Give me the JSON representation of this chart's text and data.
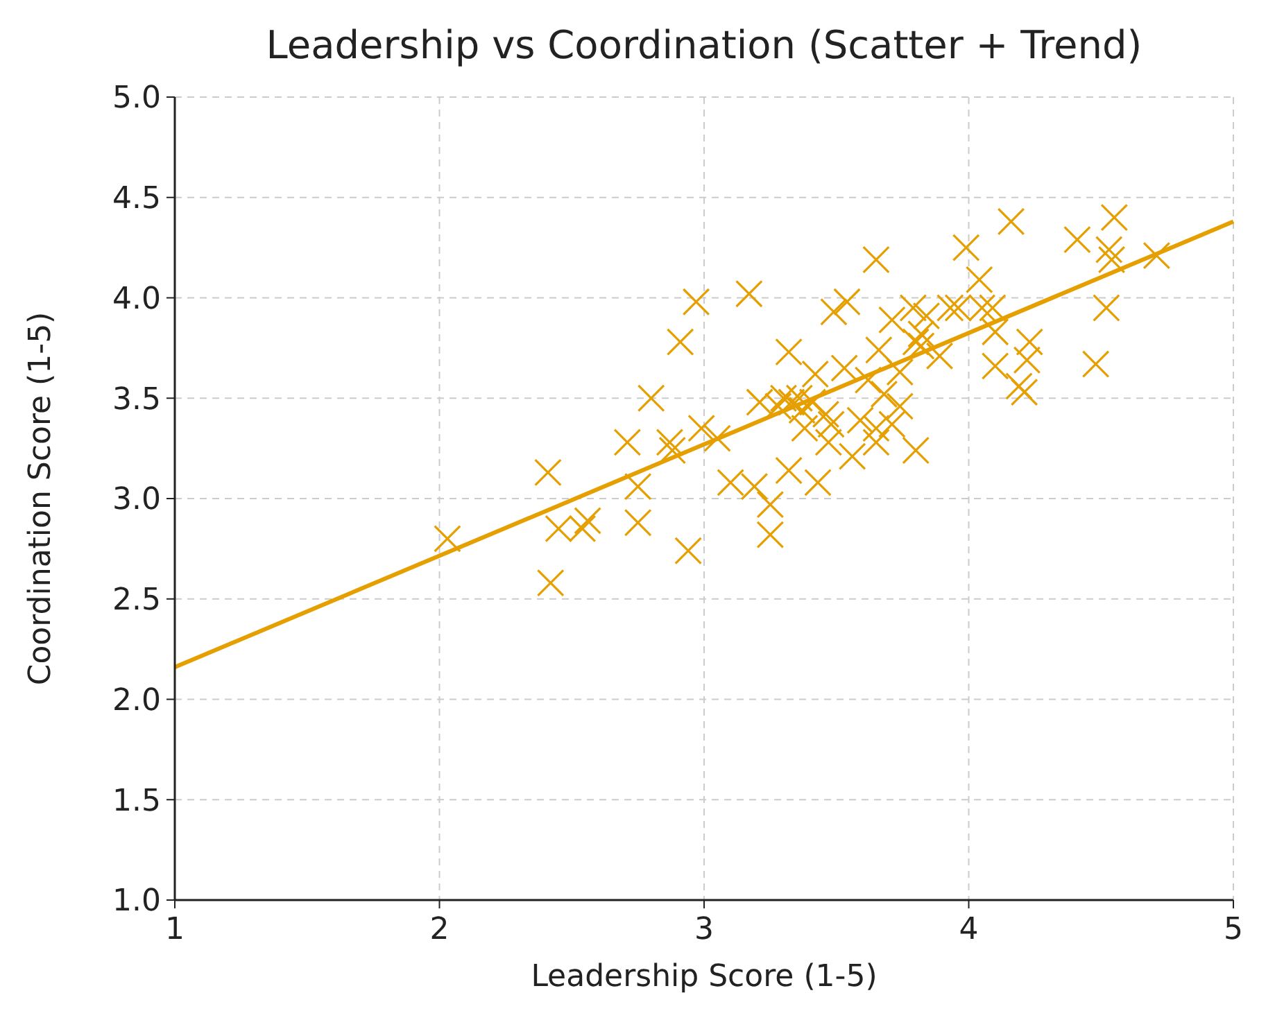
{
  "chart_data": {
    "type": "scatter",
    "title": "Leadership vs Coordination (Scatter + Trend)",
    "xlabel": "Leadership Score (1-5)",
    "ylabel": "Coordination Score (1-5)",
    "xlim": [
      1,
      5
    ],
    "xticks": [
      1,
      2,
      3,
      4,
      5
    ],
    "ylim": [
      1,
      5
    ],
    "yticks": [
      {
        "value": 1,
        "label": "1.0"
      },
      {
        "value": 1.5,
        "label": "1.5"
      },
      {
        "value": 2,
        "label": "2.0"
      },
      {
        "value": 2.5,
        "label": "2.5"
      },
      {
        "value": 3,
        "label": "3.0"
      },
      {
        "value": 3.5,
        "label": "3.5"
      },
      {
        "value": 4,
        "label": "4.0"
      },
      {
        "value": 4.5,
        "label": "4.5"
      },
      {
        "value": 5,
        "label": "5.0"
      }
    ],
    "grid": true,
    "series": [
      {
        "marker": "cross",
        "color": "#e69f00",
        "x": [
          2.03,
          2.41,
          2.42,
          2.45,
          2.54,
          2.56,
          2.71,
          2.75,
          2.75,
          2.8,
          2.87,
          2.88,
          2.91,
          2.94,
          2.97,
          2.99,
          3.05,
          3.1,
          3.17,
          3.19,
          3.21,
          3.25,
          3.25,
          3.28,
          3.3,
          3.32,
          3.32,
          3.33,
          3.36,
          3.37,
          3.38,
          3.41,
          3.43,
          3.42,
          3.46,
          3.47,
          3.48,
          3.49,
          3.54,
          3.53,
          3.56,
          3.59,
          3.62,
          3.65,
          3.65,
          3.65,
          3.66,
          3.68,
          3.71,
          3.71,
          3.74,
          3.74,
          3.79,
          3.8,
          3.8,
          3.82,
          3.82,
          3.84,
          3.89,
          3.93,
          3.96,
          3.99,
          4.04,
          4.05,
          4.09,
          4.1,
          4.1,
          4.16,
          4.19,
          4.21,
          4.22,
          4.23,
          4.41,
          4.48,
          4.52,
          4.53,
          4.54,
          4.55,
          4.71
        ],
        "values": [
          2.8,
          3.13,
          2.58,
          2.85,
          2.85,
          2.89,
          3.28,
          3.06,
          2.88,
          3.5,
          3.28,
          3.24,
          3.78,
          2.74,
          3.98,
          3.35,
          3.3,
          3.08,
          4.02,
          3.06,
          3.48,
          2.82,
          2.97,
          3.46,
          3.5,
          3.73,
          3.14,
          3.48,
          3.5,
          3.44,
          3.35,
          3.48,
          3.08,
          3.62,
          3.42,
          3.28,
          3.37,
          3.93,
          3.98,
          3.65,
          3.21,
          3.39,
          3.59,
          3.35,
          3.28,
          4.19,
          3.74,
          3.52,
          3.37,
          3.89,
          3.46,
          3.63,
          3.95,
          3.24,
          3.78,
          3.82,
          3.76,
          3.91,
          3.71,
          3.95,
          3.95,
          4.25,
          4.09,
          3.95,
          3.95,
          3.83,
          3.66,
          4.38,
          3.56,
          3.53,
          3.69,
          3.78,
          4.29,
          3.67,
          3.95,
          4.24,
          4.19,
          4.4,
          4.21
        ]
      },
      {
        "type": "line",
        "color": "#e69f00",
        "x": [
          1,
          5
        ],
        "values": [
          2.16,
          4.38
        ]
      }
    ]
  }
}
